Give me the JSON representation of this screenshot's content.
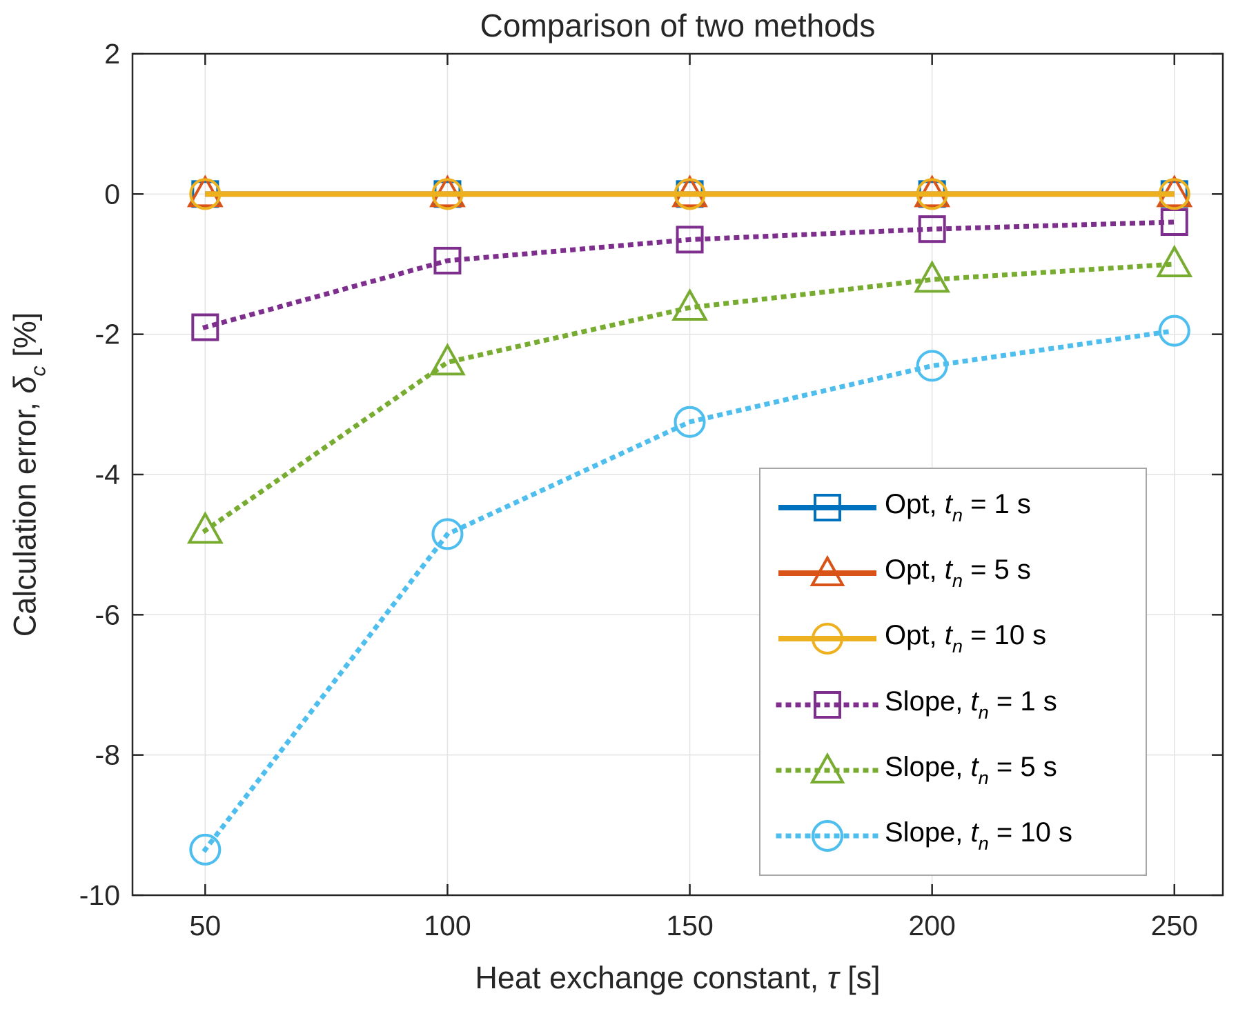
{
  "figure": {
    "background": "#ffffff"
  },
  "chart_data": {
    "type": "line",
    "title": "Comparison of two methods",
    "xlabel": {
      "prefix": "Heat exchange constant, ",
      "symbol": "τ",
      "suffix": " [s]"
    },
    "ylabel": {
      "prefix": "Calculation error, ",
      "symbol": "δ",
      "subscript": "c",
      "suffix": " [%]"
    },
    "x": [
      50,
      100,
      150,
      200,
      250
    ],
    "x_tick_labels": [
      "50",
      "100",
      "150",
      "200",
      "250"
    ],
    "y_ticks": [
      2,
      0,
      -2,
      -4,
      -6,
      -8,
      -10
    ],
    "y_tick_labels": [
      "2",
      "0",
      "-2",
      "-4",
      "-6",
      "-8",
      "-10"
    ],
    "xlim": [
      35,
      260
    ],
    "ylim": [
      -10,
      2
    ],
    "grid": true,
    "axis_color": "#262626",
    "grid_color": "#e2e2e2",
    "legend": {
      "position": "inside-bottom-right",
      "border_color": "#a6a6a6",
      "background": "#ffffff"
    },
    "series": [
      {
        "name": "Opt, tn = 1 s",
        "legend_label": {
          "prefix": "Opt, ",
          "var": "t",
          "sub": "n",
          "rest": " = 1 s"
        },
        "color": "#0072BD",
        "line_style": "solid",
        "marker": "square",
        "values": [
          0,
          0,
          0,
          0,
          0
        ]
      },
      {
        "name": "Opt, tn = 5 s",
        "legend_label": {
          "prefix": "Opt, ",
          "var": "t",
          "sub": "n",
          "rest": " = 5 s"
        },
        "color": "#D95319",
        "line_style": "solid",
        "marker": "triangle",
        "values": [
          0,
          0,
          0,
          0,
          0
        ]
      },
      {
        "name": "Opt, tn = 10 s",
        "legend_label": {
          "prefix": "Opt, ",
          "var": "t",
          "sub": "n",
          "rest": " = 10 s"
        },
        "color": "#EDB120",
        "line_style": "solid",
        "marker": "circle",
        "values": [
          0,
          0,
          0,
          0,
          0
        ]
      },
      {
        "name": "Slope, tn = 1 s",
        "legend_label": {
          "prefix": "Slope, ",
          "var": "t",
          "sub": "n",
          "rest": " = 1 s"
        },
        "color": "#7E2F8E",
        "line_style": "dotted",
        "marker": "square",
        "values": [
          -1.9,
          -0.95,
          -0.65,
          -0.5,
          -0.4
        ]
      },
      {
        "name": "Slope, tn = 5 s",
        "legend_label": {
          "prefix": "Slope, ",
          "var": "t",
          "sub": "n",
          "rest": " = 5 s"
        },
        "color": "#77AC30",
        "line_style": "dotted",
        "marker": "triangle",
        "values": [
          -4.8,
          -2.4,
          -1.62,
          -1.22,
          -1.0
        ]
      },
      {
        "name": "Slope, tn = 10 s",
        "legend_label": {
          "prefix": "Slope, ",
          "var": "t",
          "sub": "n",
          "rest": " = 10 s"
        },
        "color": "#4DBEEE",
        "line_style": "dotted",
        "marker": "circle",
        "values": [
          -9.35,
          -4.85,
          -3.25,
          -2.45,
          -1.95
        ]
      }
    ]
  }
}
